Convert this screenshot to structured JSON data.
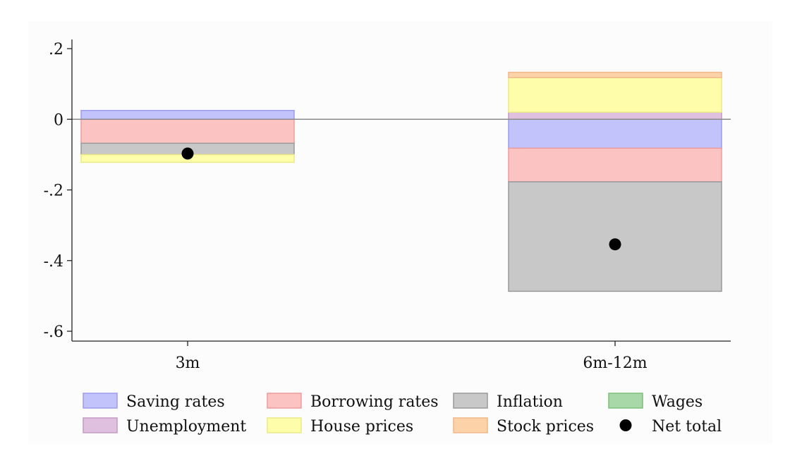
{
  "chart_data": {
    "type": "bar",
    "subtype": "stacked-floating-contributions",
    "title": "",
    "xlabel": "",
    "ylabel": "",
    "categories": [
      "3m",
      "6m-12m"
    ],
    "ylim": [
      -0.62,
      0.22
    ],
    "yticks": [
      {
        "value": 0.2,
        "label": ".2"
      },
      {
        "value": 0,
        "label": "0"
      },
      {
        "value": -0.2,
        "label": "-.2"
      },
      {
        "value": -0.4,
        "label": "-.4"
      },
      {
        "value": -0.6,
        "label": "-.6"
      }
    ],
    "grid": false,
    "zero_line": true,
    "legend_position": "bottom",
    "series": [
      {
        "name": "Saving rates",
        "color": "#c3c3fb",
        "stroke": "#9b9bef",
        "values": [
          0.025,
          -0.082
        ]
      },
      {
        "name": "Borrowing rates",
        "color": "#fcc3c3",
        "stroke": "#ef9b9b",
        "values": [
          -0.068,
          -0.095
        ]
      },
      {
        "name": "Inflation",
        "color": "#c8c8c8",
        "stroke": "#9a9a9a",
        "values": [
          -0.032,
          -0.31
        ]
      },
      {
        "name": "Wages",
        "color": "#a8d8a8",
        "stroke": "#7fbf7f",
        "values": [
          0.0,
          0.0
        ]
      },
      {
        "name": "Unemployment",
        "color": "#dfc0df",
        "stroke": "#c49bc4",
        "values": [
          0.0,
          0.02
        ]
      },
      {
        "name": "House prices",
        "color": "#fdfdaa",
        "stroke": "#eaea88",
        "values": [
          -0.022,
          0.098
        ]
      },
      {
        "name": "Stock prices",
        "color": "#fcd3a8",
        "stroke": "#f0b888",
        "values": [
          0.0,
          0.015
        ]
      }
    ],
    "net_total": {
      "name": "Net total",
      "color": "#000000",
      "values": [
        -0.097,
        -0.354
      ]
    }
  }
}
